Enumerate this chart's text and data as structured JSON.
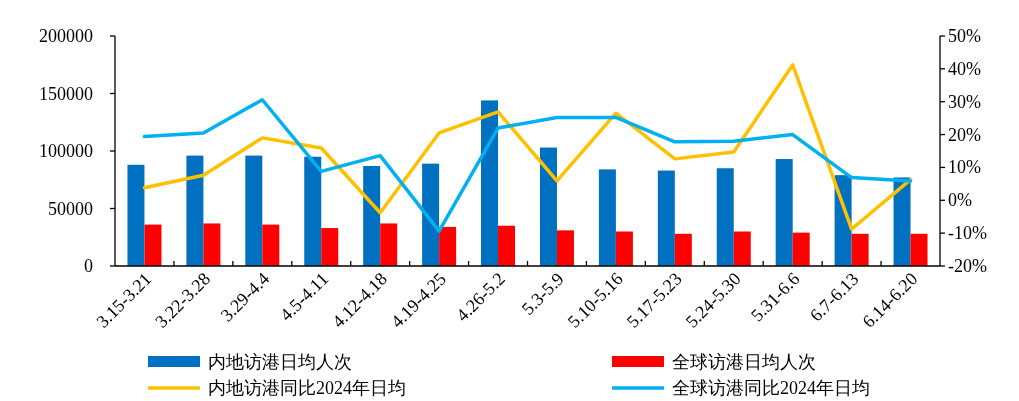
{
  "chart_data": {
    "type": "bar",
    "categories": [
      "3.15-3.21",
      "3.22-3.28",
      "3.29-4.4",
      "4.5-4.11",
      "4.12-4.18",
      "4.19-4.25",
      "4.26-5.2",
      "5.3-5.9",
      "5.10-5.16",
      "5.17-5.23",
      "5.24-5.30",
      "5.31-6.6",
      "6.7-6.13",
      "6.14-6.20"
    ],
    "series": [
      {
        "name": "内地访港日均人次",
        "color": "#0070c0",
        "values": [
          88000,
          96000,
          96000,
          95000,
          87000,
          89000,
          144000,
          103000,
          84000,
          83000,
          85000,
          93000,
          79000,
          77000
        ]
      },
      {
        "name": "全球访港日均人次",
        "color": "#ff0000",
        "values": [
          36000,
          37000,
          36000,
          33000,
          37000,
          34000,
          35000,
          31000,
          30000,
          28000,
          30000,
          29000,
          28000,
          28000
        ]
      },
      {
        "name": "内地访港同比2024年日均",
        "type": "line",
        "axis": "y2",
        "color": "#ffc000",
        "values": [
          3.8,
          7.6,
          19,
          15.9,
          -3.8,
          20.5,
          26.9,
          5.9,
          26.5,
          12.6,
          14.7,
          41.2,
          -8.8,
          6.3
        ]
      },
      {
        "name": "全球访港同比2024年日均",
        "type": "line",
        "axis": "y2",
        "color": "#00b0f0",
        "values": [
          19.4,
          20.5,
          30.6,
          8.8,
          13.6,
          -9.4,
          22,
          25.2,
          25.2,
          17.8,
          18,
          20,
          6.9,
          5.9
        ]
      }
    ],
    "ylim": [
      0,
      200000
    ],
    "yticks": [
      0,
      50000,
      100000,
      150000,
      200000
    ],
    "y2lim": [
      -20,
      50
    ],
    "y2ticks": [
      {
        "value": -20,
        "label": "-20%"
      },
      {
        "value": -10,
        "label": "-10%"
      },
      {
        "value": 0,
        "label": "0%"
      },
      {
        "value": 10,
        "label": "10%"
      },
      {
        "value": 20,
        "label": "20%"
      },
      {
        "value": 30,
        "label": "30%"
      },
      {
        "value": 40,
        "label": "40%"
      },
      {
        "value": 50,
        "label": "50%"
      }
    ],
    "legend": "bottom"
  }
}
